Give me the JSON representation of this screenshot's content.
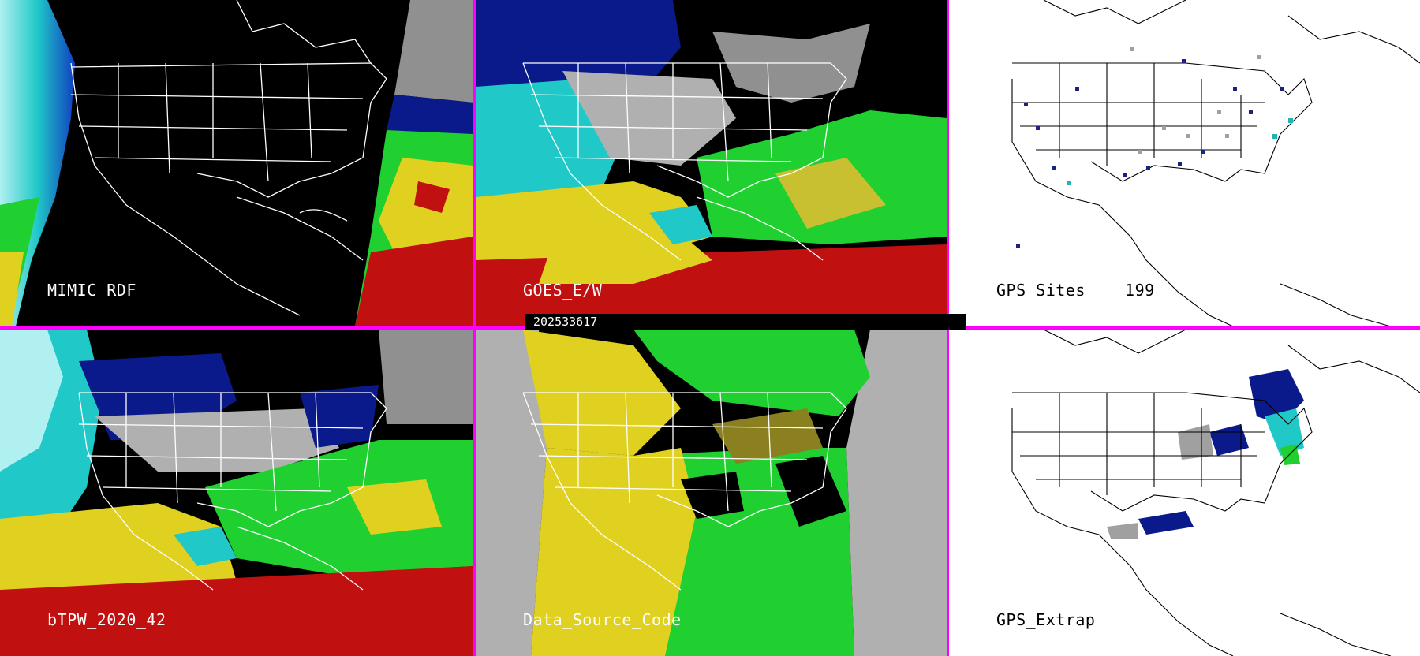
{
  "panels": {
    "mimic_rdf": {
      "label": "MIMIC RDF"
    },
    "goes_ew": {
      "label": "GOES_E/W"
    },
    "gps_sites": {
      "label": "GPS Sites    199"
    },
    "btpw": {
      "label": "bTPW_2020_42"
    },
    "data_source": {
      "label": "Data_Source_Code"
    },
    "gps_extrap": {
      "label": "GPS_Extrap"
    }
  },
  "timestamp": "202533617",
  "colors": {
    "divider": "#ff00ff",
    "red": "#c01010",
    "yellow": "#e0d020",
    "green": "#20d030",
    "cyan": "#20c8c8",
    "navy": "#0a1a8a",
    "gray": "#b0b0b0",
    "olive": "#8a8020"
  }
}
